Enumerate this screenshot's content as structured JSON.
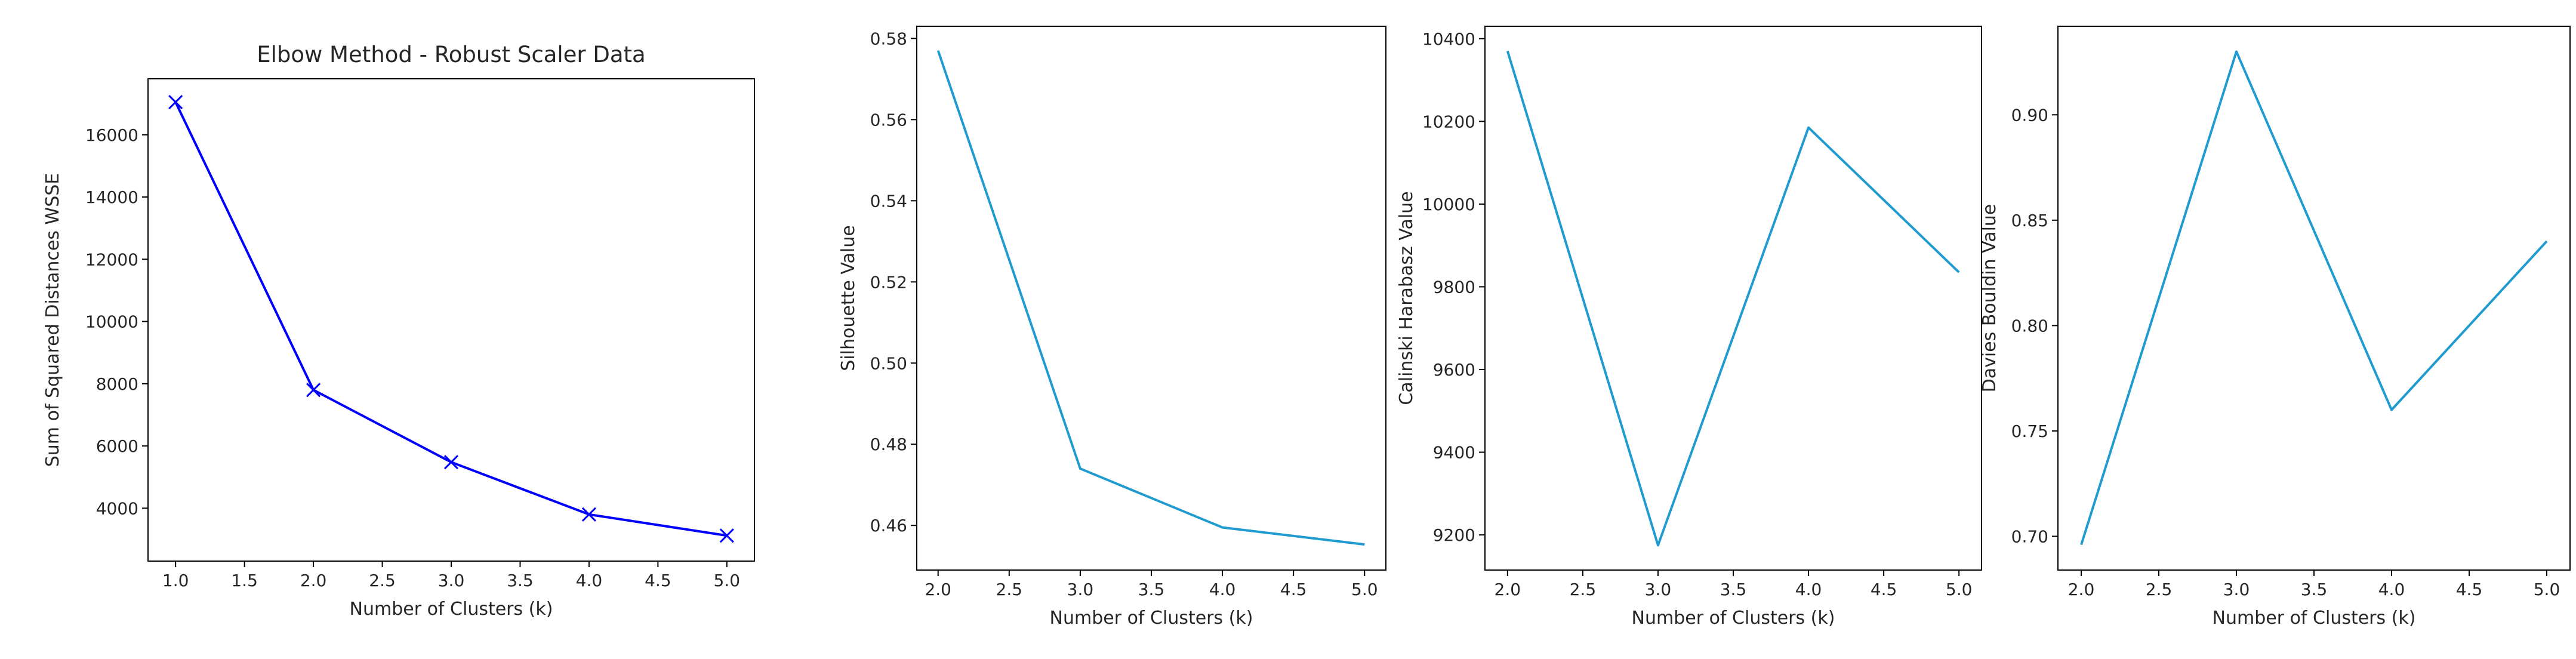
{
  "chart_data": [
    {
      "type": "line",
      "title": "Elbow Method - Robust Scaler Data",
      "xlabel": "Number of Clusters (k)",
      "ylabel": "Sum of Squared Distances WSSE",
      "x": [
        1,
        2,
        3,
        4,
        5
      ],
      "series": [
        {
          "values": [
            17050,
            7800,
            5480,
            3800,
            3120
          ]
        }
      ],
      "xlim": [
        0.8,
        5.2
      ],
      "ylim": [
        2300,
        17800
      ],
      "xticks": [
        1.0,
        1.5,
        2.0,
        2.5,
        3.0,
        3.5,
        4.0,
        4.5,
        5.0
      ],
      "xtick_labels": [
        "1.0",
        "1.5",
        "2.0",
        "2.5",
        "3.0",
        "3.5",
        "4.0",
        "4.5",
        "5.0"
      ],
      "yticks": [
        4000,
        6000,
        8000,
        10000,
        12000,
        14000,
        16000
      ],
      "ytick_labels": [
        "4000",
        "6000",
        "8000",
        "10000",
        "12000",
        "14000",
        "16000"
      ],
      "line_color": "#0000ff",
      "marker": "x",
      "grid": false
    },
    {
      "type": "line",
      "title": "",
      "xlabel": "Number of Clusters (k)",
      "ylabel": "Silhouette Value",
      "x": [
        2,
        3,
        4,
        5
      ],
      "series": [
        {
          "values": [
            0.577,
            0.474,
            0.4595,
            0.4553
          ]
        }
      ],
      "xlim": [
        1.85,
        5.15
      ],
      "ylim": [
        0.449,
        0.583
      ],
      "xticks": [
        2.0,
        2.5,
        3.0,
        3.5,
        4.0,
        4.5,
        5.0
      ],
      "xtick_labels": [
        "2.0",
        "2.5",
        "3.0",
        "3.5",
        "4.0",
        "4.5",
        "5.0"
      ],
      "yticks": [
        0.46,
        0.48,
        0.5,
        0.52,
        0.54,
        0.56,
        0.58
      ],
      "ytick_labels": [
        "0.46",
        "0.48",
        "0.50",
        "0.52",
        "0.54",
        "0.56",
        "0.58"
      ],
      "line_color": "#1f9bcf",
      "grid": false
    },
    {
      "type": "line",
      "title": "",
      "xlabel": "Number of Clusters (k)",
      "ylabel": "Calinski Harabasz Value",
      "x": [
        2,
        3,
        4,
        5
      ],
      "series": [
        {
          "values": [
            10370,
            9175,
            10185,
            9835
          ]
        }
      ],
      "xlim": [
        1.85,
        5.15
      ],
      "ylim": [
        9115,
        10430
      ],
      "xticks": [
        2.0,
        2.5,
        3.0,
        3.5,
        4.0,
        4.5,
        5.0
      ],
      "xtick_labels": [
        "2.0",
        "2.5",
        "3.0",
        "3.5",
        "4.0",
        "4.5",
        "5.0"
      ],
      "yticks": [
        9200,
        9400,
        9600,
        9800,
        10000,
        10200,
        10400
      ],
      "ytick_labels": [
        "9200",
        "9400",
        "9600",
        "9800",
        "10000",
        "10200",
        "10400"
      ],
      "line_color": "#1f9bcf",
      "grid": false
    },
    {
      "type": "line",
      "title": "",
      "xlabel": "Number of Clusters (k)",
      "ylabel": "Davies Bouldin Value",
      "x": [
        2,
        3,
        4,
        5
      ],
      "series": [
        {
          "values": [
            0.696,
            0.93,
            0.76,
            0.84
          ]
        }
      ],
      "xlim": [
        1.85,
        5.15
      ],
      "ylim": [
        0.684,
        0.942
      ],
      "xticks": [
        2.0,
        2.5,
        3.0,
        3.5,
        4.0,
        4.5,
        5.0
      ],
      "xtick_labels": [
        "2.0",
        "2.5",
        "3.0",
        "3.5",
        "4.0",
        "4.5",
        "5.0"
      ],
      "yticks": [
        0.7,
        0.75,
        0.8,
        0.85,
        0.9
      ],
      "ytick_labels": [
        "0.70",
        "0.75",
        "0.80",
        "0.85",
        "0.90"
      ],
      "line_color": "#1f9bcf",
      "grid": false
    }
  ]
}
